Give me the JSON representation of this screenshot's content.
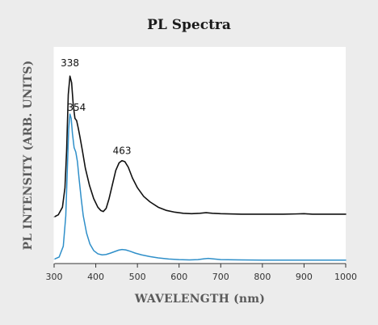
{
  "colors": {
    "background": "#ececec",
    "plot_background": "#ffffff",
    "axis": "#333333",
    "series_black": "#111111",
    "series_blue": "#2f8fc9"
  },
  "chart_data": {
    "type": "line",
    "title": "PL Spectra",
    "xlabel": "WAVELENGTH (nm)",
    "ylabel": "PL INTENSITY (ARB. UNITS)",
    "xlim": [
      300,
      1000
    ],
    "ylim": [
      0,
      1
    ],
    "xticks": [
      300,
      400,
      500,
      600,
      700,
      800,
      900,
      1000
    ],
    "show_y_ticks": false,
    "grid": false,
    "legend": "none",
    "annotations": [
      {
        "text": "338",
        "x": 338,
        "y": 0.91
      },
      {
        "text": "354",
        "x": 354,
        "y": 0.705
      },
      {
        "text": "463",
        "x": 463,
        "y": 0.506
      }
    ],
    "series": [
      {
        "color": "#111111",
        "x": [
          300,
          310,
          320,
          326,
          330,
          334,
          338,
          342,
          346,
          350,
          354,
          358,
          362,
          368,
          375,
          385,
          395,
          405,
          412,
          418,
          425,
          432,
          440,
          448,
          456,
          463,
          470,
          478,
          488,
          500,
          515,
          530,
          550,
          570,
          590,
          610,
          630,
          650,
          665,
          680,
          700,
          750,
          800,
          850,
          880,
          900,
          920,
          950,
          1000
        ],
        "y": [
          0.215,
          0.225,
          0.26,
          0.35,
          0.52,
          0.78,
          0.865,
          0.835,
          0.73,
          0.67,
          0.66,
          0.625,
          0.585,
          0.52,
          0.44,
          0.36,
          0.3,
          0.26,
          0.245,
          0.24,
          0.255,
          0.3,
          0.365,
          0.43,
          0.465,
          0.475,
          0.47,
          0.445,
          0.395,
          0.35,
          0.31,
          0.285,
          0.26,
          0.245,
          0.237,
          0.232,
          0.23,
          0.232,
          0.235,
          0.232,
          0.23,
          0.228,
          0.228,
          0.228,
          0.229,
          0.23,
          0.228,
          0.228,
          0.228
        ]
      },
      {
        "color": "#2f8fc9",
        "x": [
          300,
          312,
          322,
          328,
          332,
          335,
          338,
          341,
          344,
          348,
          352,
          356,
          360,
          365,
          370,
          378,
          386,
          395,
          405,
          415,
          425,
          435,
          445,
          455,
          463,
          472,
          482,
          495,
          510,
          530,
          550,
          575,
          600,
          625,
          645,
          660,
          670,
          685,
          700,
          750,
          800,
          850,
          900,
          950,
          1000
        ],
        "y": [
          0.02,
          0.03,
          0.08,
          0.22,
          0.45,
          0.62,
          0.69,
          0.67,
          0.6,
          0.535,
          0.515,
          0.47,
          0.39,
          0.3,
          0.22,
          0.14,
          0.09,
          0.06,
          0.045,
          0.04,
          0.042,
          0.048,
          0.055,
          0.062,
          0.065,
          0.063,
          0.057,
          0.048,
          0.04,
          0.032,
          0.026,
          0.021,
          0.018,
          0.017,
          0.018,
          0.022,
          0.024,
          0.021,
          0.018,
          0.017,
          0.016,
          0.016,
          0.016,
          0.016,
          0.016
        ]
      }
    ]
  }
}
